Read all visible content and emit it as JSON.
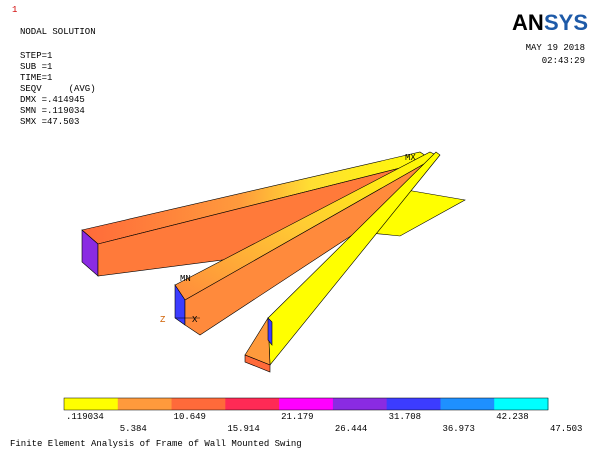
{
  "window_number": "1",
  "header": {
    "title": "NODAL SOLUTION",
    "lines": [
      "STEP=1",
      "SUB =1",
      "TIME=1",
      "SEQV     (AVG)",
      "DMX =.414945",
      "SMN =.119034",
      "SMX =47.503"
    ]
  },
  "logo": {
    "part1": "AN",
    "part2": "SYS"
  },
  "date": "MAY 19 2018",
  "time": "02:43:29",
  "model_labels": {
    "max": "MX",
    "min": "MN",
    "axis_x": "X",
    "axis_z": "Z"
  },
  "legend": {
    "colors": [
      "#ffff00",
      "#ff9a3c",
      "#ff6a3a",
      "#ff2a55",
      "#ff00ff",
      "#8a2be2",
      "#3c3cff",
      "#1e90ff",
      "#00ffff"
    ],
    "labels": [
      ".119034",
      "5.384",
      "10.649",
      "15.914",
      "21.179",
      "26.444",
      "31.708",
      "36.973",
      "42.238",
      "47.503"
    ]
  },
  "caption": "Finite Element Analysis of Frame of Wall Mounted Swing"
}
